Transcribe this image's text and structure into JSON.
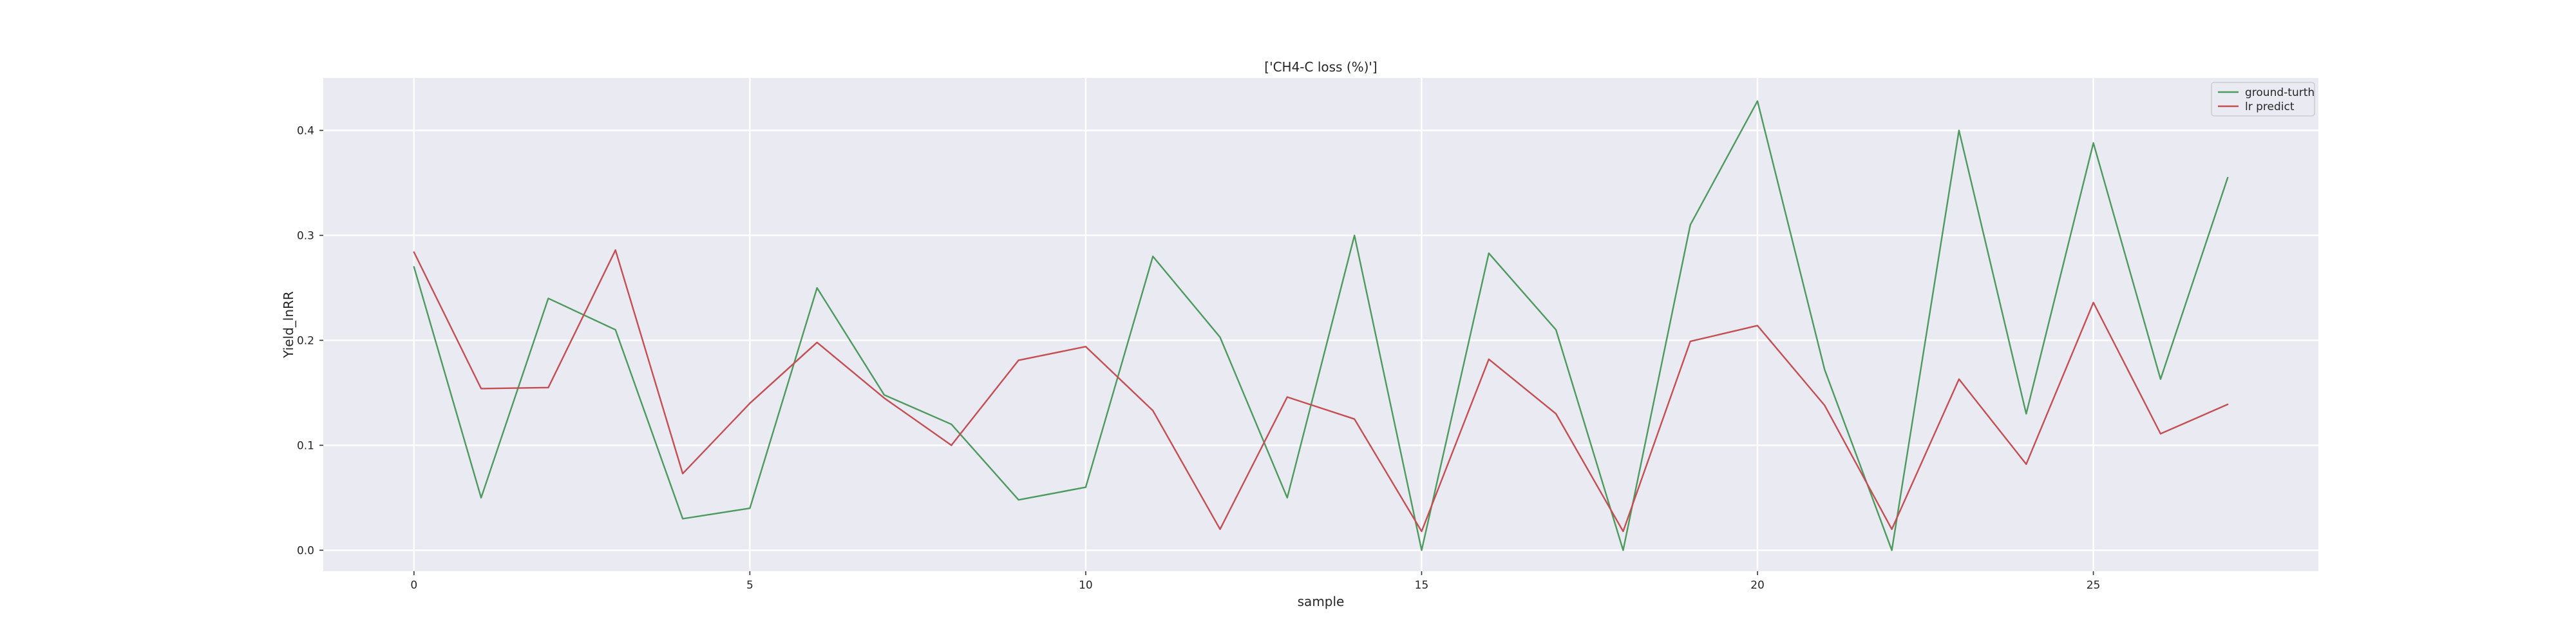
{
  "chart_data": {
    "type": "line",
    "title": "['CH4-C loss (%)']",
    "xlabel": "sample",
    "ylabel": "Yield_lnRR",
    "xlim": [
      -1.35,
      28.35
    ],
    "ylim": [
      -0.02,
      0.45
    ],
    "xticks": [
      0,
      5,
      10,
      15,
      20,
      25
    ],
    "yticks": [
      0.0,
      0.1,
      0.2,
      0.3,
      0.4
    ],
    "ytick_labels": [
      "0.0",
      "0.1",
      "0.2",
      "0.3",
      "0.4"
    ],
    "grid": true,
    "background": "#eaeaf2",
    "legend_position": "top-right",
    "x": [
      0,
      1,
      2,
      3,
      4,
      5,
      6,
      7,
      8,
      9,
      10,
      11,
      12,
      13,
      14,
      15,
      16,
      17,
      18,
      19,
      20,
      21,
      22,
      23,
      24,
      25,
      26,
      27
    ],
    "series": [
      {
        "name": "ground-turth",
        "color": "#4c9a5e",
        "values": [
          0.27,
          0.05,
          0.24,
          0.21,
          0.03,
          0.04,
          0.25,
          0.148,
          0.12,
          0.048,
          0.06,
          0.28,
          0.203,
          0.05,
          0.3,
          0.0,
          0.283,
          0.21,
          0.0,
          0.31,
          0.428,
          0.172,
          0.0,
          0.4,
          0.13,
          0.388,
          0.163,
          0.355
        ]
      },
      {
        "name": "lr predict",
        "color": "#c44e52",
        "values": [
          0.284,
          0.154,
          0.155,
          0.286,
          0.073,
          0.14,
          0.198,
          0.145,
          0.1,
          0.181,
          0.194,
          0.133,
          0.02,
          0.146,
          0.125,
          0.018,
          0.182,
          0.13,
          0.018,
          0.199,
          0.214,
          0.138,
          0.02,
          0.163,
          0.082,
          0.236,
          0.111,
          0.139
        ]
      }
    ]
  }
}
